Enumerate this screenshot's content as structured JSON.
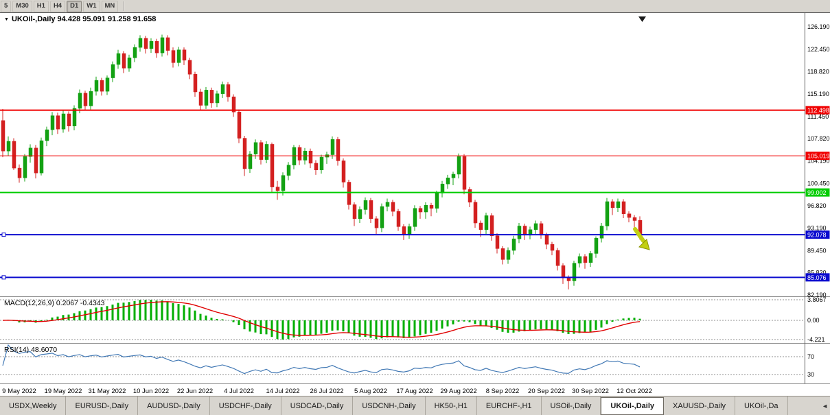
{
  "toolbar": {
    "timeframes": [
      {
        "label": "5",
        "active": false
      },
      {
        "label": "M30",
        "active": false
      },
      {
        "label": "H1",
        "active": false
      },
      {
        "label": "H4",
        "active": false
      },
      {
        "label": "D1",
        "active": true
      },
      {
        "label": "W1",
        "active": false
      },
      {
        "label": "MN",
        "active": false
      }
    ]
  },
  "chart": {
    "header": "UKOil-,Daily 94.428 95.091 91.258 91.658",
    "macd_label": "MACD(12,26,9) 0.2067 -0.4343",
    "rsi_label": "RSI(14) 48.6070"
  },
  "chart_data": {
    "type": "candlestick",
    "symbol": "UKOil-",
    "timeframe": "Daily",
    "current_ohlc": {
      "open": 94.428,
      "high": 95.091,
      "low": 91.258,
      "close": 91.658
    },
    "ylim": [
      82.19,
      126.19
    ],
    "y_ticks": [
      "126.190",
      "122.450",
      "118.820",
      "115.190",
      "111.450",
      "107.820",
      "104.190",
      "100.450",
      "96.820",
      "93.190",
      "89.450",
      "85.820",
      "82.190"
    ],
    "up_color": "#13a113",
    "down_color": "#d32020",
    "price_lines": [
      {
        "value": 112.498,
        "label": "112.498",
        "color": "#f00000",
        "width": 2,
        "handle": false
      },
      {
        "value": 105.019,
        "label": "105.019",
        "color": "#f00000",
        "width": 1,
        "handle": false
      },
      {
        "value": 99.002,
        "label": "99.002",
        "color": "#00cc00",
        "width": 2,
        "handle": false
      },
      {
        "value": 92.078,
        "label": "92.078",
        "color": "#0b0bcf",
        "width": 2,
        "handle": true
      },
      {
        "value": 85.076,
        "label": "85.076",
        "color": "#0b0bcf",
        "width": 2,
        "handle": true
      }
    ],
    "x_labels": [
      {
        "label": "9 May 2022",
        "i": 3
      },
      {
        "label": "19 May 2022",
        "i": 11
      },
      {
        "label": "31 May 2022",
        "i": 19
      },
      {
        "label": "10 Jun 2022",
        "i": 27
      },
      {
        "label": "22 Jun 2022",
        "i": 35
      },
      {
        "label": "4 Jul 2022",
        "i": 43
      },
      {
        "label": "14 Jul 2022",
        "i": 51
      },
      {
        "label": "26 Jul 2022",
        "i": 59
      },
      {
        "label": "5 Aug 2022",
        "i": 67
      },
      {
        "label": "17 Aug 2022",
        "i": 75
      },
      {
        "label": "29 Aug 2022",
        "i": 83
      },
      {
        "label": "8 Sep 2022",
        "i": 91
      },
      {
        "label": "20 Sep 2022",
        "i": 99
      },
      {
        "label": "30 Sep 2022",
        "i": 107
      },
      {
        "label": "12 Oct 2022",
        "i": 115
      }
    ],
    "candles": [
      [
        110.8,
        112.7,
        104.8,
        105.8
      ],
      [
        105.8,
        108.2,
        105.0,
        107.4
      ],
      [
        107.4,
        107.9,
        102.7,
        103.0
      ],
      [
        103.0,
        103.6,
        100.6,
        101.4
      ],
      [
        101.4,
        105.3,
        100.8,
        104.9
      ],
      [
        104.9,
        106.9,
        103.9,
        106.3
      ],
      [
        106.3,
        106.8,
        101.3,
        102.2
      ],
      [
        102.2,
        108.0,
        101.8,
        107.5
      ],
      [
        107.5,
        109.8,
        106.6,
        109.3
      ],
      [
        109.3,
        112.2,
        108.4,
        111.6
      ],
      [
        111.6,
        112.1,
        108.6,
        109.4
      ],
      [
        109.4,
        112.4,
        108.8,
        111.9
      ],
      [
        111.9,
        112.3,
        109.0,
        109.9
      ],
      [
        109.9,
        113.3,
        109.2,
        112.8
      ],
      [
        112.8,
        115.9,
        112.0,
        115.3
      ],
      [
        115.3,
        115.7,
        112.4,
        113.2
      ],
      [
        113.2,
        116.2,
        112.6,
        115.6
      ],
      [
        115.6,
        118.0,
        114.9,
        117.4
      ],
      [
        117.4,
        117.8,
        114.9,
        115.6
      ],
      [
        115.6,
        118.2,
        115.0,
        117.8
      ],
      [
        117.8,
        120.5,
        117.1,
        120.0
      ],
      [
        120.0,
        122.4,
        119.3,
        121.8
      ],
      [
        121.8,
        122.2,
        118.6,
        119.4
      ],
      [
        119.4,
        121.6,
        118.8,
        121.1
      ],
      [
        121.1,
        123.3,
        120.4,
        122.8
      ],
      [
        122.8,
        124.8,
        122.1,
        124.3
      ],
      [
        124.3,
        124.7,
        121.8,
        122.6
      ],
      [
        122.6,
        124.3,
        121.9,
        123.8
      ],
      [
        123.8,
        124.2,
        121.1,
        121.9
      ],
      [
        121.9,
        124.9,
        121.3,
        124.4
      ],
      [
        124.4,
        124.8,
        121.5,
        122.3
      ],
      [
        122.3,
        122.8,
        119.5,
        120.3
      ],
      [
        120.3,
        122.9,
        119.7,
        122.4
      ],
      [
        122.4,
        122.8,
        119.9,
        120.7
      ],
      [
        120.7,
        121.1,
        117.6,
        118.4
      ],
      [
        118.4,
        118.8,
        114.7,
        115.5
      ],
      [
        115.5,
        116.0,
        112.5,
        113.3
      ],
      [
        113.3,
        116.3,
        112.7,
        115.8
      ],
      [
        115.8,
        116.2,
        112.9,
        113.7
      ],
      [
        113.7,
        115.7,
        113.0,
        115.2
      ],
      [
        115.2,
        117.2,
        114.5,
        116.7
      ],
      [
        116.7,
        117.1,
        113.9,
        114.7
      ],
      [
        114.7,
        115.1,
        111.4,
        112.2
      ],
      [
        112.2,
        112.6,
        107.1,
        107.9
      ],
      [
        107.9,
        108.3,
        101.7,
        102.9
      ],
      [
        102.9,
        105.8,
        102.2,
        105.3
      ],
      [
        105.3,
        107.7,
        104.5,
        107.2
      ],
      [
        107.2,
        107.6,
        103.6,
        104.4
      ],
      [
        104.4,
        107.4,
        103.8,
        106.9
      ],
      [
        106.9,
        107.2,
        99.1,
        99.9
      ],
      [
        99.9,
        100.9,
        97.8,
        99.3
      ],
      [
        99.3,
        102.3,
        98.5,
        101.8
      ],
      [
        101.8,
        104.0,
        101.0,
        103.5
      ],
      [
        103.5,
        106.8,
        102.8,
        106.4
      ],
      [
        106.4,
        106.8,
        103.5,
        104.3
      ],
      [
        104.3,
        106.3,
        103.6,
        105.8
      ],
      [
        105.8,
        106.2,
        103.0,
        103.8
      ],
      [
        103.8,
        104.3,
        101.9,
        102.7
      ],
      [
        102.7,
        105.2,
        102.1,
        104.8
      ],
      [
        104.8,
        105.7,
        103.7,
        105.2
      ],
      [
        105.2,
        108.2,
        104.5,
        107.7
      ],
      [
        107.7,
        108.1,
        103.4,
        104.2
      ],
      [
        104.2,
        104.6,
        99.8,
        100.7
      ],
      [
        100.7,
        101.1,
        96.2,
        97.0
      ],
      [
        97.0,
        97.4,
        93.5,
        94.7
      ],
      [
        94.7,
        96.7,
        94.0,
        96.2
      ],
      [
        96.2,
        98.2,
        95.4,
        97.7
      ],
      [
        97.7,
        98.1,
        94.0,
        94.7
      ],
      [
        94.7,
        95.1,
        92.2,
        93.2
      ],
      [
        93.2,
        97.2,
        92.5,
        96.7
      ],
      [
        96.7,
        98.0,
        95.9,
        97.4
      ],
      [
        97.4,
        97.8,
        95.1,
        95.9
      ],
      [
        95.9,
        96.3,
        92.7,
        93.4
      ],
      [
        93.4,
        93.8,
        91.2,
        92.2
      ],
      [
        92.2,
        93.9,
        91.4,
        93.4
      ],
      [
        93.4,
        96.9,
        92.7,
        96.4
      ],
      [
        96.4,
        96.8,
        94.7,
        95.8
      ],
      [
        95.8,
        97.4,
        94.7,
        96.9
      ],
      [
        96.9,
        97.3,
        95.1,
        96.4
      ],
      [
        96.4,
        99.3,
        95.7,
        98.9
      ],
      [
        98.9,
        100.9,
        98.2,
        100.4
      ],
      [
        100.4,
        101.9,
        99.6,
        101.4
      ],
      [
        101.4,
        102.4,
        100.2,
        102.0
      ],
      [
        102.0,
        105.4,
        101.3,
        104.9
      ],
      [
        104.9,
        105.3,
        98.7,
        99.5
      ],
      [
        99.5,
        99.9,
        96.6,
        97.4
      ],
      [
        97.4,
        97.8,
        93.2,
        94.0
      ],
      [
        94.0,
        94.4,
        91.7,
        92.9
      ],
      [
        92.9,
        95.7,
        92.2,
        95.2
      ],
      [
        95.2,
        95.6,
        91.1,
        91.9
      ],
      [
        91.9,
        92.3,
        89.0,
        89.8
      ],
      [
        89.8,
        90.2,
        87.2,
        88.0
      ],
      [
        88.0,
        90.0,
        87.3,
        89.5
      ],
      [
        89.5,
        91.9,
        88.8,
        91.4
      ],
      [
        91.4,
        94.0,
        90.7,
        93.5
      ],
      [
        93.5,
        93.9,
        91.2,
        92.0
      ],
      [
        92.0,
        93.4,
        91.3,
        92.9
      ],
      [
        92.9,
        94.4,
        92.2,
        93.9
      ],
      [
        93.9,
        94.3,
        91.4,
        92.0
      ],
      [
        92.0,
        92.4,
        89.7,
        90.5
      ],
      [
        90.5,
        90.9,
        88.7,
        89.5
      ],
      [
        89.5,
        89.9,
        86.2,
        87.0
      ],
      [
        87.0,
        87.4,
        84.0,
        85.0
      ],
      [
        85.0,
        85.4,
        83.1,
        84.5
      ],
      [
        84.5,
        87.8,
        83.7,
        87.4
      ],
      [
        87.4,
        89.0,
        86.7,
        88.5
      ],
      [
        88.5,
        88.9,
        86.5,
        87.5
      ],
      [
        87.5,
        89.4,
        86.8,
        89.0
      ],
      [
        89.0,
        91.8,
        88.3,
        91.5
      ],
      [
        91.5,
        94.0,
        90.8,
        93.5
      ],
      [
        93.5,
        98.1,
        92.8,
        97.5
      ],
      [
        97.5,
        97.9,
        95.3,
        96.5
      ],
      [
        96.5,
        98.0,
        95.8,
        97.5
      ],
      [
        97.5,
        97.9,
        94.8,
        95.5
      ],
      [
        95.5,
        95.9,
        94.1,
        94.9
      ],
      [
        94.9,
        95.3,
        93.3,
        94.4
      ],
      [
        94.428,
        95.091,
        91.258,
        91.658
      ]
    ],
    "macd": {
      "name": "MACD",
      "params": "12,26,9",
      "value": 0.2067,
      "signal": -0.4343,
      "hist_color": "#00ae00",
      "signal_color": "#e00000",
      "ticks": [
        {
          "label": "3.8067",
          "v": 3.8067
        },
        {
          "label": "0.00",
          "v": 0
        },
        {
          "label": "-4.221",
          "v": -4.221
        }
      ]
    },
    "rsi": {
      "name": "RSI",
      "period": 14,
      "value": 48.607,
      "line_color": "#4178b4",
      "ticks": [
        {
          "label": "70",
          "v": 70
        },
        {
          "label": "30",
          "v": 30
        }
      ]
    },
    "annotations": {
      "arrow_color": "#c2cf12",
      "arrow_edge": "#8a9400",
      "shift_marker_color": "#1a1a1a"
    }
  },
  "tabs": {
    "items": [
      {
        "label": "USDX,Weekly",
        "active": false
      },
      {
        "label": "EURUSD-,Daily",
        "active": false
      },
      {
        "label": "AUDUSD-,Daily",
        "active": false
      },
      {
        "label": "USDCHF-,Daily",
        "active": false
      },
      {
        "label": "USDCAD-,Daily",
        "active": false
      },
      {
        "label": "USDCNH-,Daily",
        "active": false
      },
      {
        "label": "HK50-,H1",
        "active": false
      },
      {
        "label": "EURCHF-,H1",
        "active": false
      },
      {
        "label": "USOil-,Daily",
        "active": false
      },
      {
        "label": "UKOil-,Daily",
        "active": true
      },
      {
        "label": "XAUUSD-,Daily",
        "active": false
      },
      {
        "label": "UKOil-,Da",
        "active": false
      }
    ]
  }
}
